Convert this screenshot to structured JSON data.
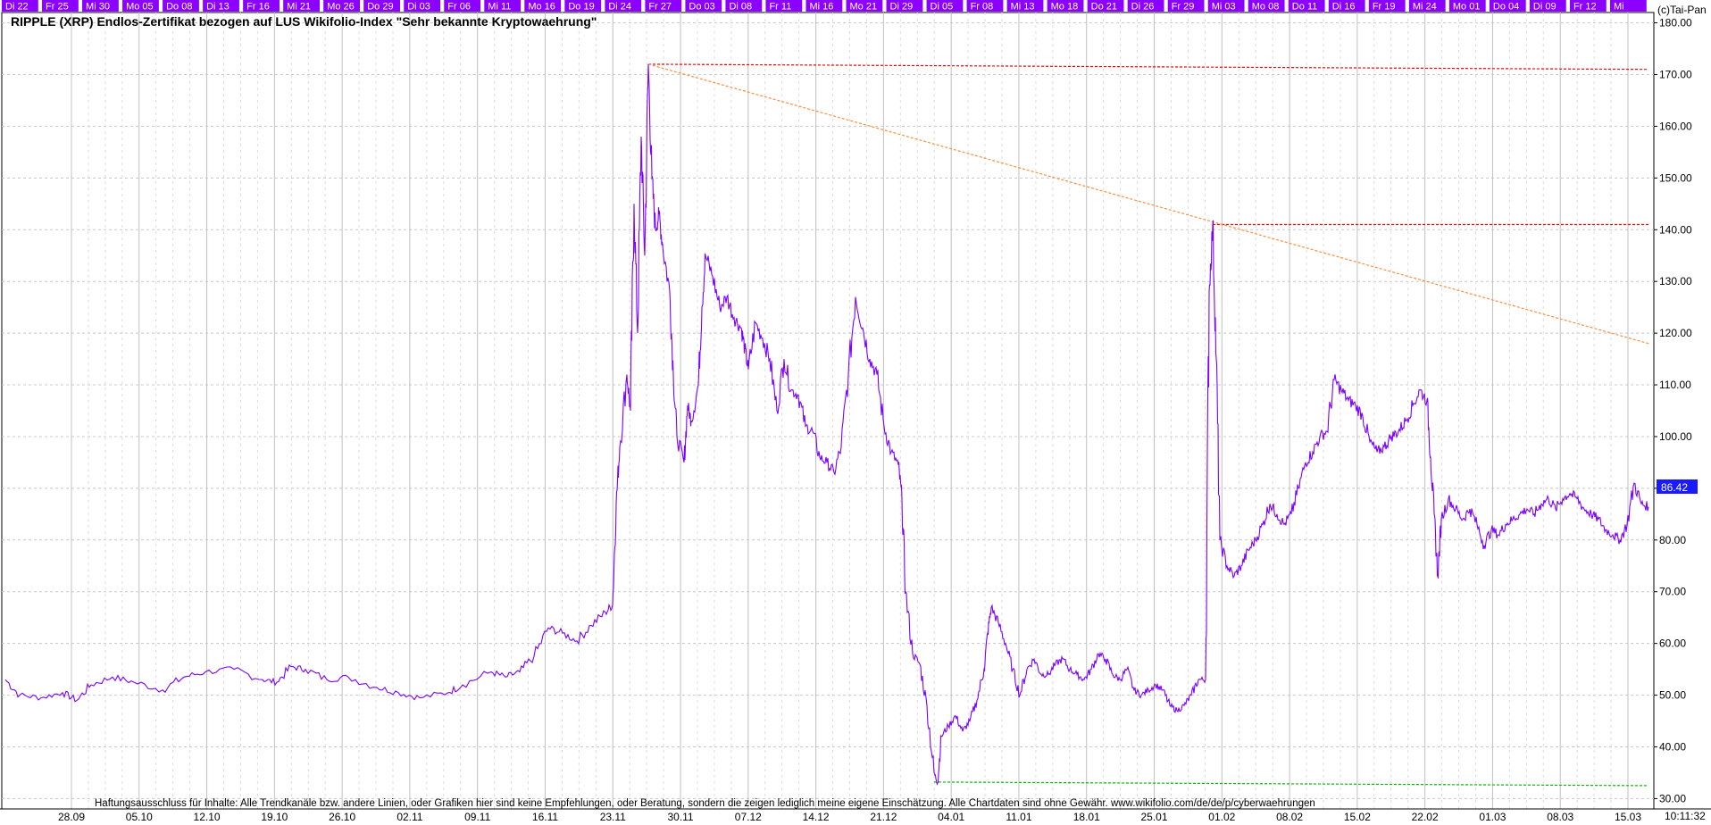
{
  "chart_data": {
    "type": "line",
    "title": "RIPPLE (XRP) Endlos-Zertifikat bezogen auf LUS Wikifolio-Index \"Sehr bekannte Kryptowaehrung\"",
    "copyright": "(c)Tai-Pan",
    "disclaimer": "Haftungsausschluss für Inhalte: Alle Trendkanäle bzw. andere Linien, oder Grafiken hier sind keine Empfehlungen, oder Beratung, sondern die zeigen lediglich meine eigene Einschätzung. Alle Chartdaten sind ohne Gewähr.  www.wikifolio.com/de/de/p/cyberwaehrungen",
    "last_price_label": "86.42",
    "last_price": 86.42,
    "timestamp": "10:11:32",
    "ylim": [
      28,
      182
    ],
    "y_ticks": [
      "30.00",
      "40.00",
      "50.00",
      "60.00",
      "70.00",
      "80.00",
      "90.00",
      "100.00",
      "110.00",
      "120.00",
      "130.00",
      "140.00",
      "150.00",
      "160.00",
      "170.00",
      "180.00"
    ],
    "x_ticks": [
      "28.09",
      "05.10",
      "12.10",
      "19.10",
      "26.10",
      "02.11",
      "09.11",
      "16.11",
      "23.11",
      "30.11",
      "07.12",
      "14.12",
      "21.12",
      "04.01",
      "11.01",
      "18.01",
      "25.01",
      "01.02",
      "08.02",
      "15.02",
      "22.02",
      "01.03",
      "08.03",
      "15.03"
    ],
    "day_tabs": [
      "Di 22",
      "Fr 25",
      "Mi 30",
      "Mo 05",
      "Do 08",
      "Di 13",
      "Fr 16",
      "Mi 21",
      "Mo 26",
      "Do 29",
      "Di 03",
      "Fr 06",
      "Mi 11",
      "Mo 16",
      "Do 19",
      "Di 24",
      "Fr 27",
      "Do 03",
      "Di 08",
      "Fr 11",
      "Mi 16",
      "Mo 21",
      "Di 29",
      "Di 05",
      "Fr 08",
      "Mi 13",
      "Mo 18",
      "Do 21",
      "Di 26",
      "Fr 29",
      "Mi 03",
      "Mo 08",
      "Do 11",
      "Di 16",
      "Fr 19",
      "Mi 24",
      "Mo 01",
      "Do 04",
      "Di 09",
      "Fr 12",
      "Mi"
    ],
    "series": [
      {
        "color": "#7b00ff",
        "points": [
          [
            0,
            53
          ],
          [
            2,
            50
          ],
          [
            5,
            49.5
          ],
          [
            8,
            50.5
          ],
          [
            10,
            49
          ],
          [
            12,
            52
          ],
          [
            15,
            53.5
          ],
          [
            18,
            52.5
          ],
          [
            22,
            51
          ],
          [
            25,
            53.5
          ],
          [
            28,
            54.5
          ],
          [
            32,
            55
          ],
          [
            36,
            53
          ],
          [
            38,
            52.5
          ],
          [
            40,
            55.5
          ],
          [
            42,
            55
          ],
          [
            45,
            53
          ],
          [
            48,
            53.5
          ],
          [
            52,
            51.5
          ],
          [
            55,
            50.5
          ],
          [
            58,
            49.5
          ],
          [
            62,
            50.5
          ],
          [
            64,
            52
          ],
          [
            68,
            54.5
          ],
          [
            70,
            53.5
          ],
          [
            72,
            54.5
          ],
          [
            74,
            57.5
          ],
          [
            76,
            63
          ],
          [
            78,
            62
          ],
          [
            80,
            60.5
          ],
          [
            82,
            63.5
          ],
          [
            84,
            66
          ],
          [
            85,
            67.5
          ],
          [
            85.5,
            87
          ],
          [
            86,
            98
          ],
          [
            87,
            112
          ],
          [
            87.5,
            105
          ],
          [
            88,
            145
          ],
          [
            88.5,
            120
          ],
          [
            89,
            158
          ],
          [
            89.5,
            135
          ],
          [
            90,
            172
          ],
          [
            90.5,
            150
          ],
          [
            91,
            140
          ],
          [
            91.5,
            143
          ],
          [
            92,
            137
          ],
          [
            93,
            128
          ],
          [
            93.5,
            112
          ],
          [
            94,
            100
          ],
          [
            95,
            95
          ],
          [
            95.5,
            106
          ],
          [
            96,
            103
          ],
          [
            97,
            110
          ],
          [
            97.5,
            125
          ],
          [
            98,
            135
          ],
          [
            99,
            131
          ],
          [
            100,
            125
          ],
          [
            101,
            127
          ],
          [
            102,
            123
          ],
          [
            103,
            121
          ],
          [
            103.5,
            117
          ],
          [
            104,
            113
          ],
          [
            105,
            122
          ],
          [
            106,
            119
          ],
          [
            107,
            115
          ],
          [
            108,
            105
          ],
          [
            109,
            115
          ],
          [
            110,
            109
          ],
          [
            111,
            108
          ],
          [
            112,
            102
          ],
          [
            113,
            101
          ],
          [
            114,
            96
          ],
          [
            115,
            95
          ],
          [
            116,
            93
          ],
          [
            117,
            98
          ],
          [
            118,
            112
          ],
          [
            119,
            127
          ],
          [
            120,
            121
          ],
          [
            121,
            115
          ],
          [
            122,
            112
          ],
          [
            123,
            102
          ],
          [
            124,
            97
          ],
          [
            125,
            94.5
          ],
          [
            125.5,
            88
          ],
          [
            126,
            70
          ],
          [
            127,
            58
          ],
          [
            128,
            56
          ],
          [
            129,
            48
          ],
          [
            130,
            35
          ],
          [
            130.5,
            33
          ],
          [
            131,
            42
          ],
          [
            132,
            44
          ],
          [
            133,
            46
          ],
          [
            134,
            43
          ],
          [
            135,
            45
          ],
          [
            136,
            49
          ],
          [
            137,
            55
          ],
          [
            137.5,
            62
          ],
          [
            138,
            67
          ],
          [
            139,
            64
          ],
          [
            140,
            60
          ],
          [
            141,
            55
          ],
          [
            142,
            50
          ],
          [
            143,
            55
          ],
          [
            144,
            57
          ],
          [
            145,
            54
          ],
          [
            146,
            54
          ],
          [
            147,
            56
          ],
          [
            148,
            57
          ],
          [
            149,
            55
          ],
          [
            150,
            54
          ],
          [
            151,
            53
          ],
          [
            152,
            55
          ],
          [
            153,
            58
          ],
          [
            154,
            57
          ],
          [
            155,
            54
          ],
          [
            156,
            53
          ],
          [
            157,
            55
          ],
          [
            158,
            51
          ],
          [
            159,
            50
          ],
          [
            160,
            51
          ],
          [
            161,
            52
          ],
          [
            162,
            51
          ],
          [
            163,
            48
          ],
          [
            164,
            47
          ],
          [
            165,
            48
          ],
          [
            166,
            50
          ],
          [
            167,
            53
          ],
          [
            168,
            53
          ],
          [
            168.5,
            128
          ],
          [
            169,
            141
          ],
          [
            169.5,
            115
          ],
          [
            170,
            80
          ],
          [
            171,
            75
          ],
          [
            172,
            73
          ],
          [
            173,
            75
          ],
          [
            174,
            78
          ],
          [
            175,
            80
          ],
          [
            176,
            83
          ],
          [
            177,
            87
          ],
          [
            178,
            85
          ],
          [
            179,
            83
          ],
          [
            180,
            85
          ],
          [
            181,
            90
          ],
          [
            182,
            95
          ],
          [
            183,
            97
          ],
          [
            184,
            100
          ],
          [
            185,
            101
          ],
          [
            186,
            111
          ],
          [
            187,
            109
          ],
          [
            188,
            107
          ],
          [
            189,
            106
          ],
          [
            190,
            104
          ],
          [
            191,
            99
          ],
          [
            192,
            97
          ],
          [
            193,
            98
          ],
          [
            194,
            100
          ],
          [
            195,
            101
          ],
          [
            196,
            103
          ],
          [
            197,
            106
          ],
          [
            198,
            109
          ],
          [
            199,
            107
          ],
          [
            199.5,
            96
          ],
          [
            200,
            85
          ],
          [
            200.5,
            73
          ],
          [
            201,
            84
          ],
          [
            202,
            88
          ],
          [
            203,
            86
          ],
          [
            204,
            84
          ],
          [
            205,
            86
          ],
          [
            206,
            83
          ],
          [
            207,
            79
          ],
          [
            208,
            82
          ],
          [
            209,
            81
          ],
          [
            210,
            83
          ],
          [
            211,
            84
          ],
          [
            212,
            85
          ],
          [
            213,
            86
          ],
          [
            214,
            85
          ],
          [
            215,
            87
          ],
          [
            216,
            88
          ],
          [
            217,
            86
          ],
          [
            218,
            88
          ],
          [
            219,
            89
          ],
          [
            220,
            88
          ],
          [
            221,
            86
          ],
          [
            222,
            85
          ],
          [
            223,
            84
          ],
          [
            224,
            82
          ],
          [
            225,
            81
          ],
          [
            226,
            80
          ],
          [
            227,
            83
          ],
          [
            228,
            91
          ],
          [
            229,
            87
          ],
          [
            230,
            86.42
          ]
        ]
      }
    ],
    "lines": [
      {
        "color": "#ff0000",
        "style": "dashed",
        "from": [
          90,
          172
        ],
        "to": [
          230,
          171
        ]
      },
      {
        "color": "#ff0000",
        "style": "dashed",
        "from": [
          169,
          141
        ],
        "to": [
          230,
          141
        ]
      },
      {
        "color": "#ff8c3a",
        "style": "dashed",
        "from": [
          90,
          172
        ],
        "to": [
          230,
          118
        ]
      },
      {
        "color": "#00c000",
        "style": "dashed",
        "from": [
          130,
          33.2
        ],
        "to": [
          230,
          32.5
        ]
      }
    ],
    "colors": {
      "line": "#7b00ff",
      "tab_background": "#8c00ff",
      "price_label_background": "#1a1aff",
      "grid": "#c8c8c8",
      "border": "#000000"
    },
    "grid": true
  }
}
